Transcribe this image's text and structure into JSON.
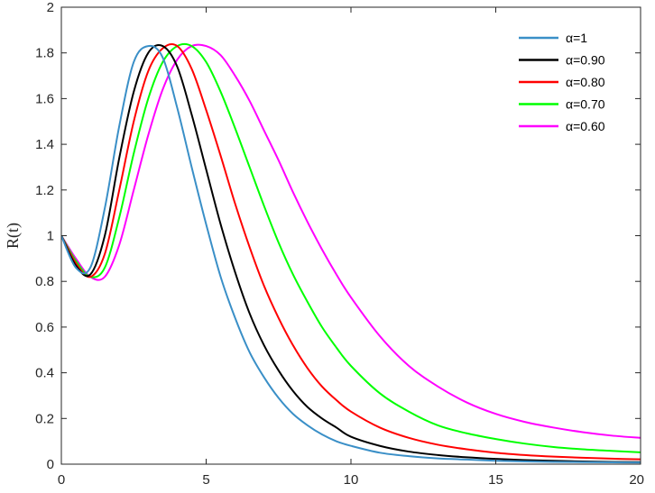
{
  "chart_data": {
    "type": "line",
    "title": "",
    "xlabel": "",
    "ylabel": "R(t)",
    "xlim": [
      0,
      20
    ],
    "ylim": [
      0,
      2
    ],
    "x_ticks": [
      "0",
      "5",
      "10",
      "15",
      "20"
    ],
    "y_ticks": [
      "0",
      "0.2",
      "0.4",
      "0.6",
      "0.8",
      "1",
      "1.2",
      "1.4",
      "1.6",
      "1.8",
      "2"
    ],
    "grid": false,
    "legend_position": "top-right",
    "x": [
      0,
      0.5,
      1,
      1.5,
      2,
      2.5,
      3,
      3.5,
      4,
      4.5,
      5,
      5.5,
      6,
      6.5,
      7,
      7.5,
      8,
      8.5,
      9,
      9.5,
      10,
      11,
      12,
      13,
      14,
      15,
      16,
      17,
      18,
      19,
      20
    ],
    "series": [
      {
        "name": "α=1",
        "color": "#3a8fc7",
        "values": [
          1.0,
          0.86,
          0.86,
          1.12,
          1.48,
          1.76,
          1.83,
          1.78,
          1.56,
          1.3,
          1.05,
          0.82,
          0.64,
          0.49,
          0.38,
          0.29,
          0.22,
          0.17,
          0.13,
          0.1,
          0.08,
          0.05,
          0.035,
          0.025,
          0.02,
          0.015,
          0.012,
          0.01,
          0.009,
          0.008,
          0.007
        ]
      },
      {
        "name": "α=0.90",
        "color": "#000000",
        "values": [
          1.0,
          0.87,
          0.83,
          1.0,
          1.34,
          1.63,
          1.8,
          1.83,
          1.74,
          1.53,
          1.29,
          1.05,
          0.84,
          0.66,
          0.52,
          0.41,
          0.32,
          0.25,
          0.2,
          0.16,
          0.12,
          0.08,
          0.055,
          0.04,
          0.03,
          0.023,
          0.018,
          0.015,
          0.012,
          0.01,
          0.009
        ]
      },
      {
        "name": "α=0.80",
        "color": "#ff0000",
        "values": [
          1.0,
          0.88,
          0.82,
          0.92,
          1.2,
          1.5,
          1.72,
          1.82,
          1.83,
          1.73,
          1.55,
          1.35,
          1.14,
          0.95,
          0.78,
          0.64,
          0.52,
          0.42,
          0.34,
          0.28,
          0.23,
          0.16,
          0.115,
          0.085,
          0.065,
          0.05,
          0.04,
          0.033,
          0.028,
          0.024,
          0.021
        ]
      },
      {
        "name": "α=0.70",
        "color": "#00ff00",
        "values": [
          1.0,
          0.89,
          0.82,
          0.86,
          1.08,
          1.36,
          1.6,
          1.76,
          1.83,
          1.83,
          1.76,
          1.63,
          1.47,
          1.3,
          1.13,
          0.97,
          0.83,
          0.71,
          0.6,
          0.51,
          0.43,
          0.31,
          0.23,
          0.17,
          0.135,
          0.11,
          0.09,
          0.075,
          0.065,
          0.058,
          0.052
        ]
      },
      {
        "name": "α=0.60",
        "color": "#ff00ff",
        "values": [
          1.0,
          0.9,
          0.82,
          0.82,
          0.96,
          1.2,
          1.44,
          1.64,
          1.77,
          1.83,
          1.83,
          1.79,
          1.7,
          1.59,
          1.46,
          1.33,
          1.19,
          1.06,
          0.94,
          0.83,
          0.73,
          0.56,
          0.43,
          0.34,
          0.27,
          0.22,
          0.185,
          0.16,
          0.14,
          0.125,
          0.115
        ]
      }
    ]
  }
}
